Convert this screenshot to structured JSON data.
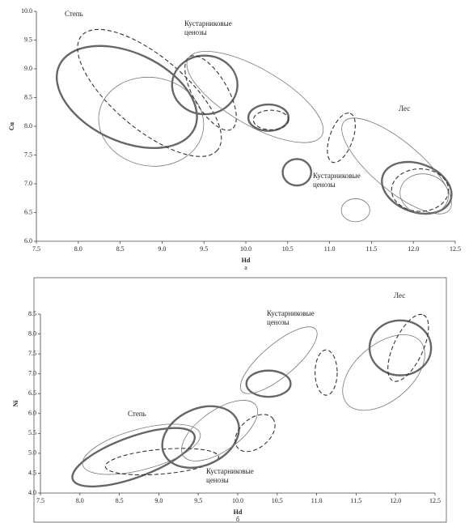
{
  "chart_data": [
    {
      "type": "ellipse",
      "y_label": "Cu",
      "x_label": "Hd",
      "caption": "а",
      "xlim": [
        7.5,
        12.5
      ],
      "xticks": [
        7.5,
        {
          "value": 8,
          "label": "8.0"
        },
        8.5,
        {
          "value": 9,
          "label": "9.0"
        },
        9.5,
        {
          "value": 10,
          "label": "10.0"
        },
        10.5,
        {
          "value": 11,
          "label": "11.0"
        },
        11.5,
        {
          "value": 12,
          "label": "12.0"
        },
        12.5
      ],
      "ylim": [
        6,
        10
      ],
      "yticks": [
        {
          "value": 6,
          "label": "6.0"
        },
        6.5,
        {
          "value": 7,
          "label": "7.0"
        },
        7.5,
        {
          "value": 8,
          "label": "8.0"
        },
        8.5,
        {
          "value": 9,
          "label": "9.0"
        },
        9.5,
        {
          "value": 10,
          "label": "10.0"
        }
      ],
      "annotations": [
        [
          "Степь"
        ],
        [
          "Кустарниковые",
          "ценозы"
        ],
        [
          "Лес"
        ],
        [
          "Кустарниковые",
          "ценозы"
        ]
      ],
      "ellipses": [
        {
          "style": "thick",
          "cx": 8.58,
          "cy": 8.51,
          "rx": 0.89,
          "ry": 0.77,
          "angle": 25
        },
        {
          "style": "dashed",
          "cx": 8.85,
          "cy": 8.58,
          "rx": 1.06,
          "ry": 0.63,
          "angle": 40
        },
        {
          "style": "thin",
          "cx": 8.87,
          "cy": 8.08,
          "rx": 0.63,
          "ry": 0.77,
          "angle": 10
        },
        {
          "style": "thick",
          "cx": 9.51,
          "cy": 8.72,
          "rx": 0.39,
          "ry": 0.51,
          "angle": 0
        },
        {
          "style": "dashed",
          "cx": 9.58,
          "cy": 8.58,
          "rx": 0.5,
          "ry": 0.3,
          "angle": 60
        },
        {
          "style": "thin",
          "cx": 10.11,
          "cy": 8.51,
          "rx": 0.92,
          "ry": 0.49,
          "angle": 30
        },
        {
          "style": "thick",
          "cx": 10.27,
          "cy": 8.15,
          "rx": 0.24,
          "ry": 0.23,
          "angle": 0
        },
        {
          "style": "dashed",
          "cx": 10.3,
          "cy": 8.11,
          "rx": 0.21,
          "ry": 0.17,
          "angle": 0
        },
        {
          "style": "thick",
          "cx": 10.61,
          "cy": 7.2,
          "rx": 0.17,
          "ry": 0.23,
          "angle": 0
        },
        {
          "style": "dashed",
          "cx": 11.14,
          "cy": 7.8,
          "rx": 0.31,
          "ry": 0.2,
          "angle": -70
        },
        {
          "style": "thin",
          "cx": 11.31,
          "cy": 6.54,
          "rx": 0.17,
          "ry": 0.2,
          "angle": 0
        },
        {
          "style": "thin",
          "cx": 11.8,
          "cy": 7.31,
          "rx": 0.82,
          "ry": 0.42,
          "angle": 40
        },
        {
          "style": "thick",
          "cx": 12.04,
          "cy": 6.93,
          "rx": 0.43,
          "ry": 0.42,
          "angle": 20
        },
        {
          "style": "dashed",
          "cx": 12.08,
          "cy": 6.89,
          "rx": 0.34,
          "ry": 0.37,
          "angle": 0
        },
        {
          "style": "thin",
          "cx": 12.13,
          "cy": 6.82,
          "rx": 0.29,
          "ry": 0.35,
          "angle": 10
        }
      ]
    },
    {
      "type": "ellipse",
      "y_label": "Ni",
      "x_label": "Hd",
      "caption": "б",
      "xlim": [
        7.5,
        12.5
      ],
      "xticks": [
        7.5,
        {
          "value": 8,
          "label": "8.0"
        },
        8.5,
        {
          "value": 9,
          "label": "9.0"
        },
        9.5,
        {
          "value": 10,
          "label": "10.0"
        },
        10.5,
        {
          "value": 11,
          "label": "11.0"
        },
        11.5,
        {
          "value": 12,
          "label": "12.0"
        },
        12.5
      ],
      "ylim": [
        4,
        8.5
      ],
      "yticks": [
        {
          "value": 4,
          "label": "4.0"
        },
        4.5,
        {
          "value": 5,
          "label": "5.0"
        },
        5.5,
        {
          "value": 6,
          "label": "6.0"
        },
        6.5,
        {
          "value": 7,
          "label": "7.0"
        },
        7.5,
        {
          "value": 8,
          "label": "8.0"
        },
        8.5
      ],
      "annotations": [
        [
          "Степь"
        ],
        [
          "Кустарниковые",
          "ценозы"
        ],
        [
          "Лес"
        ],
        [
          "Кустарниковые",
          "ценозы"
        ]
      ],
      "ellipses": [
        {
          "style": "thick",
          "cx": 8.68,
          "cy": 4.9,
          "rx": 0.82,
          "ry": 0.51,
          "angle": -20
        },
        {
          "style": "thin",
          "cx": 8.78,
          "cy": 5.1,
          "rx": 0.77,
          "ry": 0.51,
          "angle": -15
        },
        {
          "style": "dashed",
          "cx": 9.04,
          "cy": 4.79,
          "rx": 0.72,
          "ry": 0.31,
          "angle": -5
        },
        {
          "style": "thick",
          "cx": 9.53,
          "cy": 5.41,
          "rx": 0.51,
          "ry": 0.71,
          "angle": -25
        },
        {
          "style": "thin",
          "cx": 9.77,
          "cy": 5.57,
          "rx": 0.56,
          "ry": 0.51,
          "angle": -35
        },
        {
          "style": "dashed",
          "cx": 10.22,
          "cy": 5.51,
          "rx": 0.29,
          "ry": 0.37,
          "angle": -40
        },
        {
          "style": "thick",
          "cx": 10.39,
          "cy": 6.75,
          "rx": 0.28,
          "ry": 0.33,
          "angle": 0
        },
        {
          "style": "thin",
          "cx": 10.52,
          "cy": 7.34,
          "rx": 0.61,
          "ry": 0.41,
          "angle": -40
        },
        {
          "style": "dashed",
          "cx": 11.12,
          "cy": 7.03,
          "rx": 0.14,
          "ry": 0.57,
          "angle": 0
        },
        {
          "style": "thin",
          "cx": 11.85,
          "cy": 7.03,
          "rx": 0.61,
          "ry": 0.71,
          "angle": -40
        },
        {
          "style": "thick",
          "cx": 12.06,
          "cy": 7.65,
          "rx": 0.39,
          "ry": 0.69,
          "angle": 0
        },
        {
          "style": "dashed",
          "cx": 12.16,
          "cy": 7.65,
          "rx": 0.46,
          "ry": 0.37,
          "angle": -65
        }
      ]
    }
  ]
}
